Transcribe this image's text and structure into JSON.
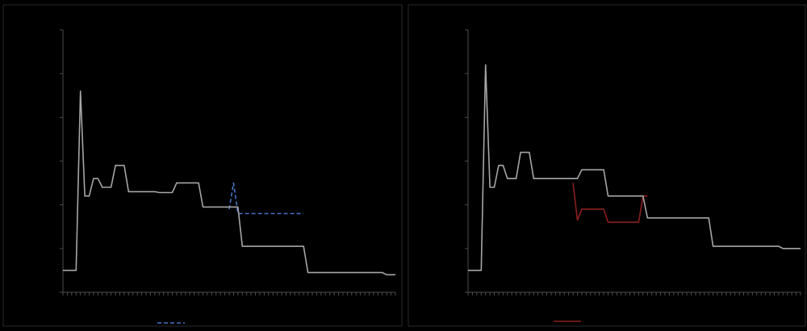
{
  "colors": {
    "background": "#000000",
    "axis": "#4d4d4d",
    "gray_series": "#a6a6a6",
    "blue_series": "#4472c4",
    "red_series": "#8b1f1f"
  },
  "chart_data": [
    {
      "type": "line",
      "title": "",
      "xlabel": "",
      "ylabel": "",
      "xlim": [
        0,
        76
      ],
      "ylim": [
        0,
        6
      ],
      "x_tick_count": 77,
      "y_tick_count": 7,
      "grid": false,
      "legend": "bottom-center",
      "series": [
        {
          "color_key": "gray_series",
          "dashed": false,
          "values": [
            0.5,
            0.5,
            0.5,
            0.5,
            4.6,
            2.2,
            2.2,
            2.6,
            2.6,
            2.4,
            2.4,
            2.4,
            2.9,
            2.9,
            2.9,
            2.3,
            2.3,
            2.3,
            2.3,
            2.3,
            2.3,
            2.3,
            2.28,
            2.28,
            2.28,
            2.28,
            2.5,
            2.5,
            2.5,
            2.5,
            2.5,
            2.5,
            1.95,
            1.95,
            1.95,
            1.95,
            1.95,
            1.95,
            1.95,
            1.95,
            1.95,
            1.05,
            1.05,
            1.05,
            1.05,
            1.05,
            1.05,
            1.05,
            1.05,
            1.05,
            1.05,
            1.05,
            1.05,
            1.05,
            1.05,
            1.05,
            0.45,
            0.45,
            0.45,
            0.45,
            0.45,
            0.45,
            0.45,
            0.45,
            0.45,
            0.45,
            0.45,
            0.45,
            0.45,
            0.45,
            0.45,
            0.45,
            0.45,
            0.45,
            0.4,
            0.4,
            0.4
          ]
        },
        {
          "color_key": "blue_series",
          "dashed": true,
          "x_start": 38,
          "values": [
            1.9,
            2.5,
            1.8,
            1.8,
            1.8,
            1.8,
            1.8,
            1.8,
            1.8,
            1.8,
            1.8,
            1.8,
            1.8,
            1.8,
            1.8,
            1.8,
            1.8,
            1.8
          ]
        }
      ]
    },
    {
      "type": "line",
      "title": "",
      "xlabel": "",
      "ylabel": "",
      "xlim": [
        0,
        76
      ],
      "ylim": [
        0,
        6
      ],
      "x_tick_count": 77,
      "y_tick_count": 7,
      "grid": false,
      "legend": "bottom-center",
      "series": [
        {
          "color_key": "gray_series",
          "dashed": false,
          "values": [
            0.5,
            0.5,
            0.5,
            0.5,
            5.2,
            2.4,
            2.4,
            2.9,
            2.9,
            2.6,
            2.6,
            2.6,
            3.2,
            3.2,
            3.2,
            2.6,
            2.6,
            2.6,
            2.6,
            2.6,
            2.6,
            2.6,
            2.6,
            2.6,
            2.6,
            2.6,
            2.8,
            2.8,
            2.8,
            2.8,
            2.8,
            2.8,
            2.2,
            2.2,
            2.2,
            2.2,
            2.2,
            2.2,
            2.2,
            2.2,
            2.2,
            1.7,
            1.7,
            1.7,
            1.7,
            1.7,
            1.7,
            1.7,
            1.7,
            1.7,
            1.7,
            1.7,
            1.7,
            1.7,
            1.7,
            1.7,
            1.05,
            1.05,
            1.05,
            1.05,
            1.05,
            1.05,
            1.05,
            1.05,
            1.05,
            1.05,
            1.05,
            1.05,
            1.05,
            1.05,
            1.05,
            1.05,
            1.0,
            1.0,
            1.0,
            1.0,
            1.0
          ]
        },
        {
          "color_key": "red_series",
          "dashed": false,
          "x_start": 24,
          "values": [
            2.5,
            1.65,
            1.9,
            1.9,
            1.9,
            1.9,
            1.9,
            1.9,
            1.6,
            1.6,
            1.6,
            1.6,
            1.6,
            1.6,
            1.6,
            1.6,
            2.2,
            2.2
          ]
        }
      ]
    }
  ]
}
